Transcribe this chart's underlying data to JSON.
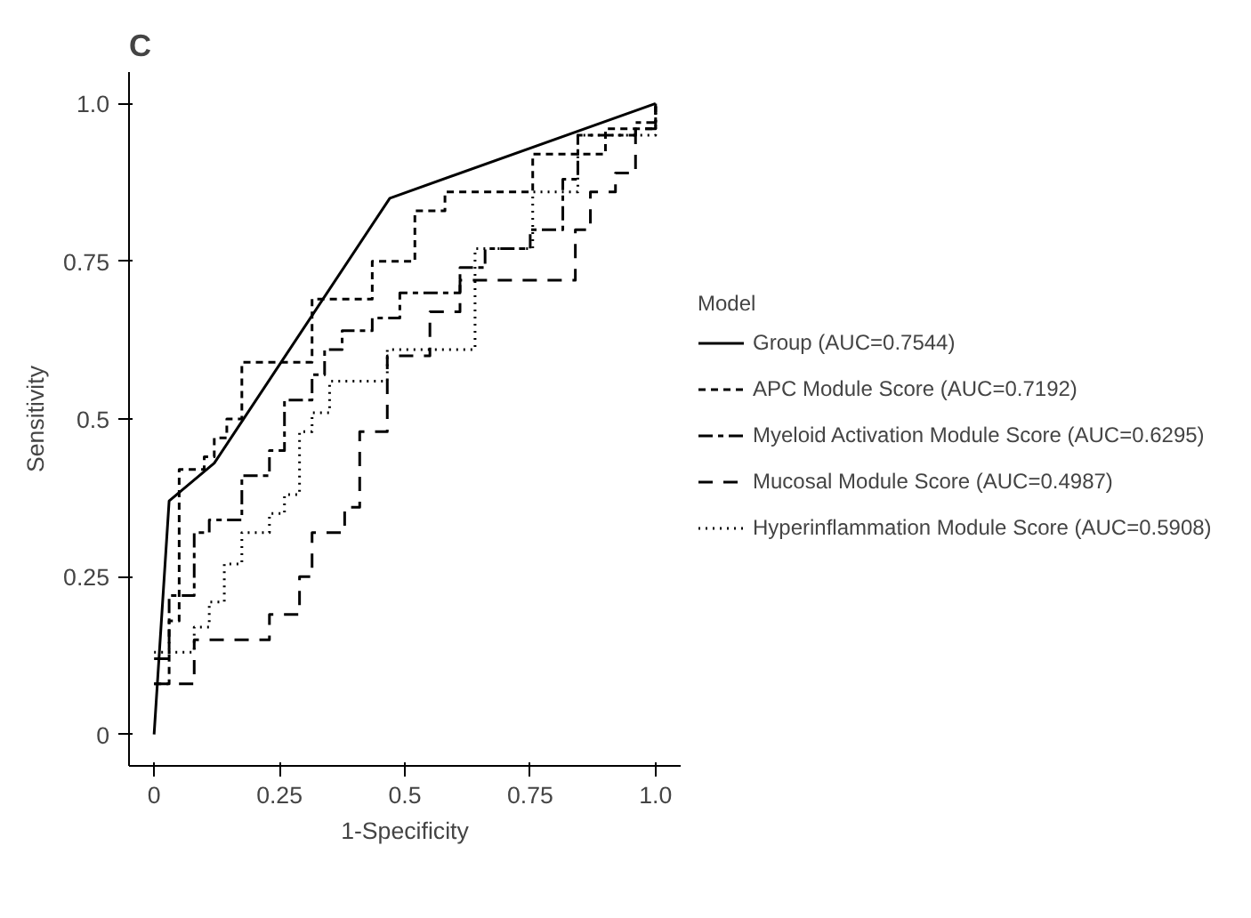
{
  "chart_data": {
    "type": "step",
    "title": "C",
    "xlabel": "1-Specificity",
    "ylabel": "Sensitivity",
    "legend_title": "Model",
    "legend": "right",
    "grid": false,
    "xlim": [
      -0.05,
      1.05
    ],
    "ylim": [
      -0.05,
      1.05
    ],
    "xticks": [
      0,
      0.25,
      0.5,
      0.75,
      {
        "value": 1,
        "label": "1.0"
      }
    ],
    "yticks": [
      0,
      0.25,
      0.5,
      0.75,
      {
        "value": 1,
        "label": "1.0"
      }
    ],
    "series": [
      {
        "name": "Group (AUC=0.7544)",
        "type": "line",
        "color": "#000000",
        "line_style": "solid",
        "x": [
          0,
          0.03,
          0.12,
          0.47,
          1
        ],
        "values": [
          0,
          0.37,
          0.43,
          0.85,
          1
        ]
      },
      {
        "name": "APC Module Score (AUC=0.7192)",
        "color": "#000000",
        "line_style": "dashed",
        "x": [
          0,
          0.03,
          0.03,
          0.05,
          0.05,
          0.1,
          0.12,
          0.12,
          0.145,
          0.145,
          0.175,
          0.175,
          0.315,
          0.315,
          0.435,
          0.435,
          0.52,
          0.52,
          0.58,
          0.58,
          0.755,
          0.755,
          0.9,
          0.9,
          1,
          1
        ],
        "values": [
          0.08,
          0.08,
          0.18,
          0.18,
          0.42,
          0.44,
          0.44,
          0.47,
          0.47,
          0.5,
          0.5,
          0.59,
          0.61,
          0.69,
          0.69,
          0.75,
          0.75,
          0.83,
          0.83,
          0.86,
          0.86,
          0.92,
          0.92,
          0.96,
          0.96,
          1
        ]
      },
      {
        "name": "Myeloid Activation Module Score (AUC=0.6295)",
        "color": "#000000",
        "line_style": "dashdot",
        "x": [
          0,
          0.03,
          0.03,
          0.08,
          0.08,
          0.11,
          0.11,
          0.175,
          0.175,
          0.23,
          0.23,
          0.26,
          0.26,
          0.315,
          0.315,
          0.34,
          0.34,
          0.375,
          0.375,
          0.435,
          0.435,
          0.49,
          0.49,
          0.61,
          0.61,
          0.66,
          0.66,
          0.75,
          0.75,
          0.815,
          0.815,
          0.845,
          0.845,
          0.96,
          0.96,
          1,
          1
        ],
        "values": [
          0.12,
          0.12,
          0.22,
          0.22,
          0.32,
          0.32,
          0.34,
          0.34,
          0.41,
          0.41,
          0.45,
          0.45,
          0.53,
          0.53,
          0.57,
          0.57,
          0.61,
          0.61,
          0.64,
          0.64,
          0.66,
          0.66,
          0.7,
          0.7,
          0.74,
          0.74,
          0.77,
          0.77,
          0.8,
          0.8,
          0.88,
          0.88,
          0.95,
          0.95,
          0.97,
          0.97,
          1
        ]
      },
      {
        "name": "Mucosal Module Score (AUC=0.4987)",
        "color": "#000000",
        "line_style": "longdash",
        "x": [
          0,
          0.08,
          0.08,
          0.23,
          0.23,
          0.29,
          0.29,
          0.315,
          0.315,
          0.38,
          0.38,
          0.41,
          0.41,
          0.465,
          0.465,
          0.55,
          0.55,
          0.61,
          0.61,
          0.84,
          0.84,
          0.87,
          0.87,
          0.92,
          0.92,
          0.96,
          0.96,
          1,
          1
        ],
        "values": [
          0.08,
          0.08,
          0.15,
          0.15,
          0.19,
          0.19,
          0.25,
          0.25,
          0.32,
          0.32,
          0.36,
          0.36,
          0.48,
          0.48,
          0.6,
          0.6,
          0.67,
          0.67,
          0.72,
          0.72,
          0.8,
          0.8,
          0.86,
          0.86,
          0.89,
          0.89,
          0.96,
          0.96,
          1
        ]
      },
      {
        "name": "Hyperinflammation Module Score (AUC=0.5908)",
        "color": "#000000",
        "line_style": "dotted",
        "x": [
          0,
          0.08,
          0.08,
          0.11,
          0.11,
          0.14,
          0.14,
          0.175,
          0.175,
          0.23,
          0.23,
          0.26,
          0.26,
          0.29,
          0.29,
          0.315,
          0.315,
          0.35,
          0.35,
          0.465,
          0.465,
          0.64,
          0.64,
          0.755,
          0.755,
          0.845,
          0.845,
          1,
          1
        ],
        "values": [
          0.13,
          0.13,
          0.17,
          0.17,
          0.21,
          0.21,
          0.27,
          0.27,
          0.32,
          0.32,
          0.35,
          0.35,
          0.38,
          0.38,
          0.48,
          0.48,
          0.51,
          0.51,
          0.56,
          0.56,
          0.61,
          0.61,
          0.77,
          0.77,
          0.86,
          0.86,
          0.95,
          0.95,
          1
        ]
      }
    ]
  }
}
